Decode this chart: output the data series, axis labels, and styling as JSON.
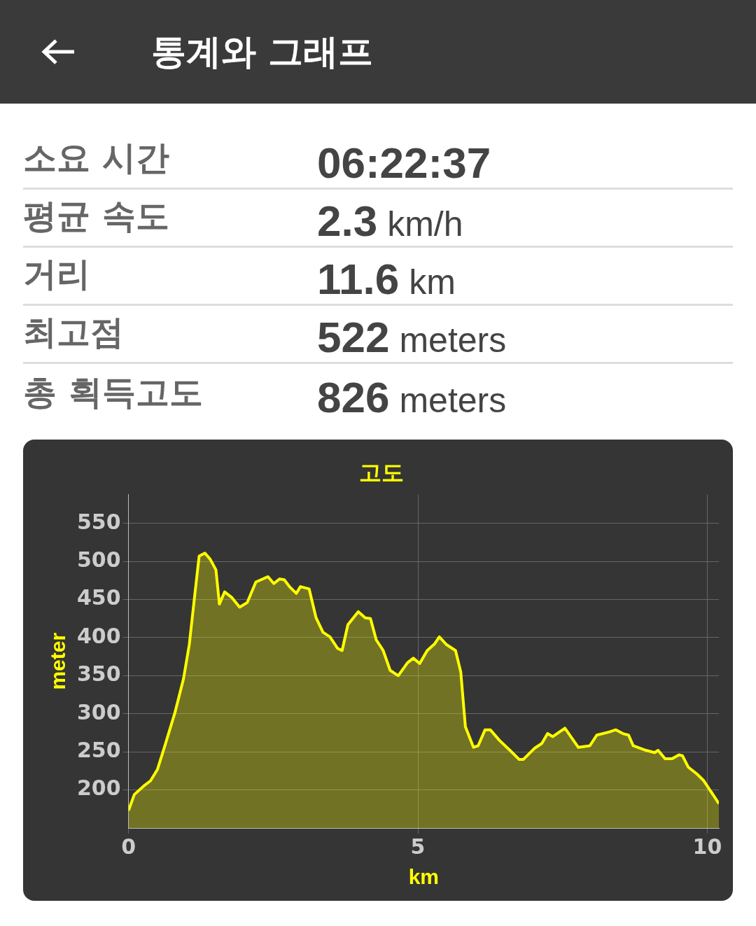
{
  "chart_data": [
    {
      "type": "other",
      "title": "통계와 그래프",
      "annotations": [
        "소요 시간",
        "06:22:37",
        "평균 속도",
        "2.3 km/h",
        "거리",
        "11.6 km",
        "최고점",
        "522 meters",
        "총 획득고도",
        "826 meters"
      ]
    },
    {
      "type": "area",
      "title": "고도",
      "xlabel": "km",
      "ylabel": "meter",
      "color": "#ffff00",
      "grid": true,
      "xlim": [
        0,
        10.2
      ],
      "xticks": [
        0,
        5,
        10
      ],
      "ylim": [
        150,
        588
      ],
      "yticks": [
        200,
        250,
        300,
        350,
        400,
        450,
        500,
        550
      ],
      "x": [
        0,
        0.1,
        0.26,
        0.38,
        0.5,
        0.62,
        0.8,
        0.95,
        1.05,
        1.14,
        1.22,
        1.32,
        1.41,
        1.51,
        1.57,
        1.66,
        1.78,
        1.92,
        2.05,
        2.2,
        2.29,
        2.41,
        2.51,
        2.61,
        2.69,
        2.78,
        2.9,
        2.97,
        3.12,
        3.24,
        3.36,
        3.48,
        3.61,
        3.69,
        3.79,
        3.97,
        4.09,
        4.18,
        4.28,
        4.4,
        4.52,
        4.66,
        4.82,
        4.92,
        5.03,
        5.16,
        5.29,
        5.37,
        5.49,
        5.65,
        5.74,
        5.82,
        5.96,
        6.04,
        6.16,
        6.25,
        6.41,
        6.59,
        6.75,
        6.82,
        7.02,
        7.14,
        7.24,
        7.33,
        7.54,
        7.77,
        7.97,
        8.09,
        8.3,
        8.42,
        8.54,
        8.64,
        8.72,
        8.94,
        9.09,
        9.15,
        9.27,
        9.39,
        9.51,
        9.57,
        9.67,
        9.82,
        9.94,
        10.2
      ],
      "values": [
        173,
        194,
        205,
        212,
        227,
        256,
        301,
        346,
        391,
        453,
        507,
        511,
        503,
        489,
        444,
        460,
        453,
        440,
        446,
        473,
        476,
        480,
        471,
        477,
        476,
        467,
        458,
        467,
        464,
        426,
        407,
        401,
        386,
        383,
        417,
        434,
        426,
        425,
        397,
        383,
        357,
        350,
        367,
        373,
        366,
        383,
        392,
        401,
        391,
        383,
        355,
        283,
        256,
        258,
        279,
        279,
        265,
        252,
        240,
        240,
        255,
        261,
        274,
        270,
        281,
        256,
        258,
        272,
        276,
        279,
        274,
        272,
        258,
        252,
        249,
        252,
        241,
        241,
        246,
        245,
        230,
        221,
        212,
        182
      ]
    }
  ]
}
